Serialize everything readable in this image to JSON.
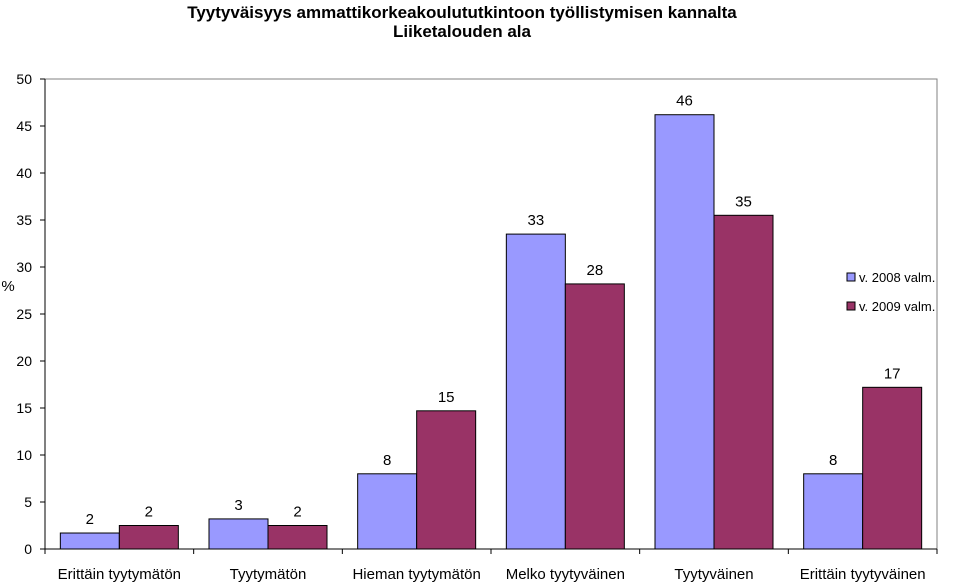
{
  "chart_data": {
    "type": "bar",
    "title": "Tyytyväisyys ammattikorkeakoulututkintoon työllistymisen kannalta",
    "subtitle": "Liiketalouden ala",
    "ylabel": "%",
    "xlabel": "",
    "ylim": [
      0,
      50
    ],
    "yticks": [
      0,
      5,
      10,
      15,
      20,
      25,
      30,
      35,
      40,
      45,
      50
    ],
    "grid": false,
    "legend_position": "right",
    "categories": [
      "Erittäin tyytymätön",
      "Tyytymätön",
      "Hieman tyytymätön",
      "Melko tyytyväinen",
      "Tyytyväinen",
      "Erittäin tyytyväinen"
    ],
    "series": [
      {
        "name": "v. 2008 valm.",
        "color": "#9999ff",
        "values": [
          1.7,
          3.2,
          8.0,
          33.5,
          46.2,
          8.0
        ],
        "labels": [
          "2",
          "3",
          "8",
          "33",
          "46",
          "8"
        ]
      },
      {
        "name": "v. 2009 valm.",
        "color": "#993366",
        "values": [
          2.5,
          2.5,
          14.7,
          28.2,
          35.5,
          17.2
        ],
        "labels": [
          "2",
          "2",
          "15",
          "28",
          "35",
          "17"
        ]
      }
    ]
  }
}
